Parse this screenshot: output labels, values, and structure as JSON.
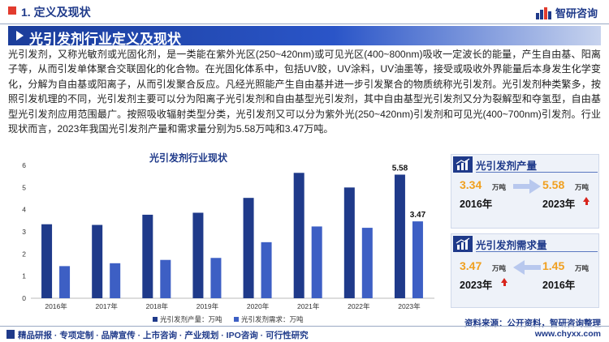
{
  "header": {
    "section": "1. 定义及现状",
    "logo_text": "智研咨询",
    "title": "光引发剂行业定义及现状"
  },
  "paragraph": "光引发剂，又称光敏剂或光固化剂，是一类能在紫外光区(250~420nm)或可见光区(400~800nm)吸收一定波长的能量，产生自由基、阳离子等，从而引发单体聚合交联固化的化合物。在光固化体系中，包括UV胶，UV涂料，UV油墨等，接受或吸收外界能量后本身发生化学变化，分解为自由基或阳离子，从而引发聚合反应。凡经光照能产生自由基并进一步引发聚合的物质统称光引发剂。光引发剂种类繁多，按照引发机理的不同，光引发剂主要可以分为阳离子光引发剂和自由基型光引发剂，其中自由基型光引发剂又分为裂解型和夺氢型，自由基型光引发剂应用范围最广。按照吸收辐射类型分类，光引发剂又可以分为紫外光(250~420nm)引发剂和可见光(400~700nm)引发剂。行业现状而言，2023年我国光引发剂产量和需求量分别为5.58万吨和3.47万吨。",
  "chart_data": {
    "type": "bar",
    "title": "光引发剂行业现状",
    "categories": [
      "2016年",
      "2017年",
      "2018年",
      "2019年",
      "2020年",
      "2021年",
      "2022年",
      "2023年"
    ],
    "series": [
      {
        "name": "光引发剂产量：万吨",
        "values": [
          3.34,
          3.31,
          3.77,
          3.86,
          4.53,
          5.66,
          5.0,
          5.58
        ],
        "color": "#1f3a8a"
      },
      {
        "name": "光引发剂需求：万吨",
        "values": [
          1.45,
          1.58,
          1.73,
          1.82,
          2.53,
          3.24,
          3.18,
          3.47
        ],
        "color": "#3d5fc4"
      }
    ],
    "ylim": [
      0,
      6
    ],
    "yticks": [
      0,
      1,
      2,
      3,
      4,
      5,
      6
    ],
    "grid": false,
    "legend": "bottom",
    "data_labels": {
      "2023年": [
        "5.58",
        "3.47"
      ]
    }
  },
  "cards": {
    "production": {
      "title": "光引发剂产量",
      "from_value": "3.34",
      "from_unit": "万吨",
      "from_year": "2016年",
      "to_value": "5.58",
      "to_unit": "万吨",
      "to_year": "2023年"
    },
    "demand": {
      "title": "光引发剂需求量",
      "from_value": "3.47",
      "from_unit": "万吨",
      "from_year": "2023年",
      "to_value": "1.45",
      "to_unit": "万吨",
      "to_year": "2016年"
    }
  },
  "source": "资料来源：公开资料，智研咨询整理",
  "footer": {
    "left": "精品研报 · 专项定制 · 品牌宣传 · 上市咨询 · 产业规划 · IPO咨询 · 可行性研究",
    "right": "www.chyxx.com"
  },
  "colors": {
    "brand": "#1f3a8a",
    "accent": "#f0a020",
    "up_arrow": "#d8251d"
  }
}
